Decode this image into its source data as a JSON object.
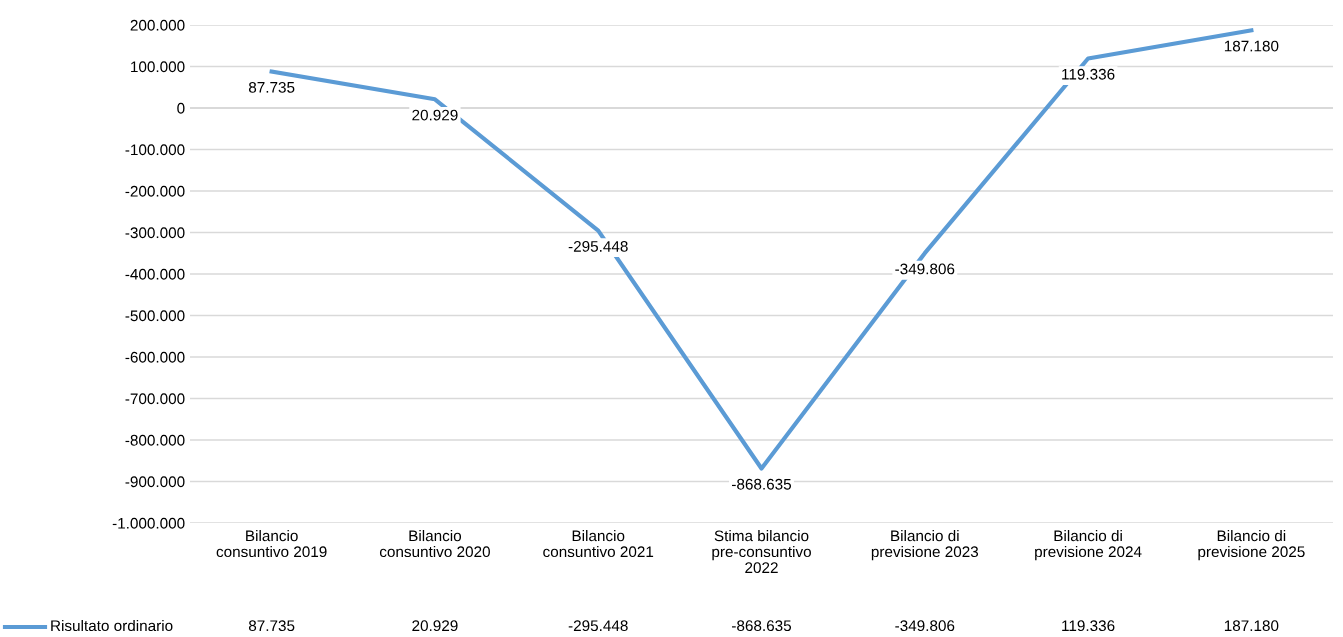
{
  "chart_data": {
    "type": "line",
    "categories": [
      "Bilancio\nconsuntivo 2019",
      "Bilancio\nconsuntivo 2020",
      "Bilancio\nconsuntivo 2021",
      "Stima bilancio\npre-consuntivo\n2022",
      "Bilancio di\nprevisione 2023",
      "Bilancio di\nprevisione 2024",
      "Bilancio di\nprevisione 2025"
    ],
    "series": [
      {
        "name": "Risultato ordinario",
        "color": "#5b9bd5",
        "values": [
          87735,
          20929,
          -295448,
          -868635,
          -349806,
          119336,
          187180
        ],
        "value_labels": [
          "87.735",
          "20.929",
          "-295.448",
          "-868.635",
          "-349.806",
          "119.336",
          "187.180"
        ]
      }
    ],
    "ylim": [
      -1000000,
      200000
    ],
    "yticks": [
      {
        "value": -1000000,
        "label": "-1.000.000"
      },
      {
        "value": -900000,
        "label": "-900.000"
      },
      {
        "value": -800000,
        "label": "-800.000"
      },
      {
        "value": -700000,
        "label": "-700.000"
      },
      {
        "value": -600000,
        "label": "-600.000"
      },
      {
        "value": -500000,
        "label": "-500.000"
      },
      {
        "value": -400000,
        "label": "-400.000"
      },
      {
        "value": -300000,
        "label": "-300.000"
      },
      {
        "value": -200000,
        "label": "-200.000"
      },
      {
        "value": -100000,
        "label": "-100.000"
      },
      {
        "value": 0,
        "label": "0"
      },
      {
        "value": 100000,
        "label": "100.000"
      },
      {
        "value": 200000,
        "label": "200.000"
      }
    ],
    "grid": "y",
    "marker": "none",
    "line_style": "solid"
  }
}
